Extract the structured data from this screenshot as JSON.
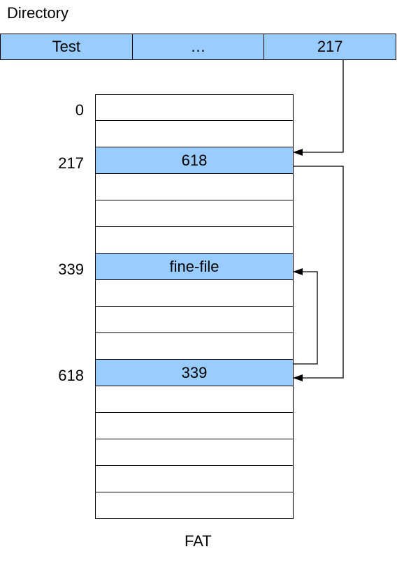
{
  "title": "Directory",
  "directory": {
    "cells": [
      "Test",
      "…",
      "217"
    ]
  },
  "fat": {
    "caption": "FAT",
    "rows": [
      {
        "value": "",
        "highlight": false
      },
      {
        "value": "",
        "highlight": false
      },
      {
        "value": "618",
        "highlight": true
      },
      {
        "value": "",
        "highlight": false
      },
      {
        "value": "",
        "highlight": false
      },
      {
        "value": "",
        "highlight": false
      },
      {
        "value": "fine-file",
        "highlight": true
      },
      {
        "value": "",
        "highlight": false
      },
      {
        "value": "",
        "highlight": false
      },
      {
        "value": "",
        "highlight": false
      },
      {
        "value": "339",
        "highlight": true
      },
      {
        "value": "",
        "highlight": false
      },
      {
        "value": "",
        "highlight": false
      },
      {
        "value": "",
        "highlight": false
      },
      {
        "value": "",
        "highlight": false
      },
      {
        "value": "",
        "highlight": false
      }
    ],
    "indices": [
      {
        "label": "0",
        "row": 0
      },
      {
        "label": "217",
        "row": 2
      },
      {
        "label": "339",
        "row": 6
      },
      {
        "label": "618",
        "row": 10
      }
    ]
  },
  "colors": {
    "highlight": "#99ccff",
    "line": "#000000"
  }
}
